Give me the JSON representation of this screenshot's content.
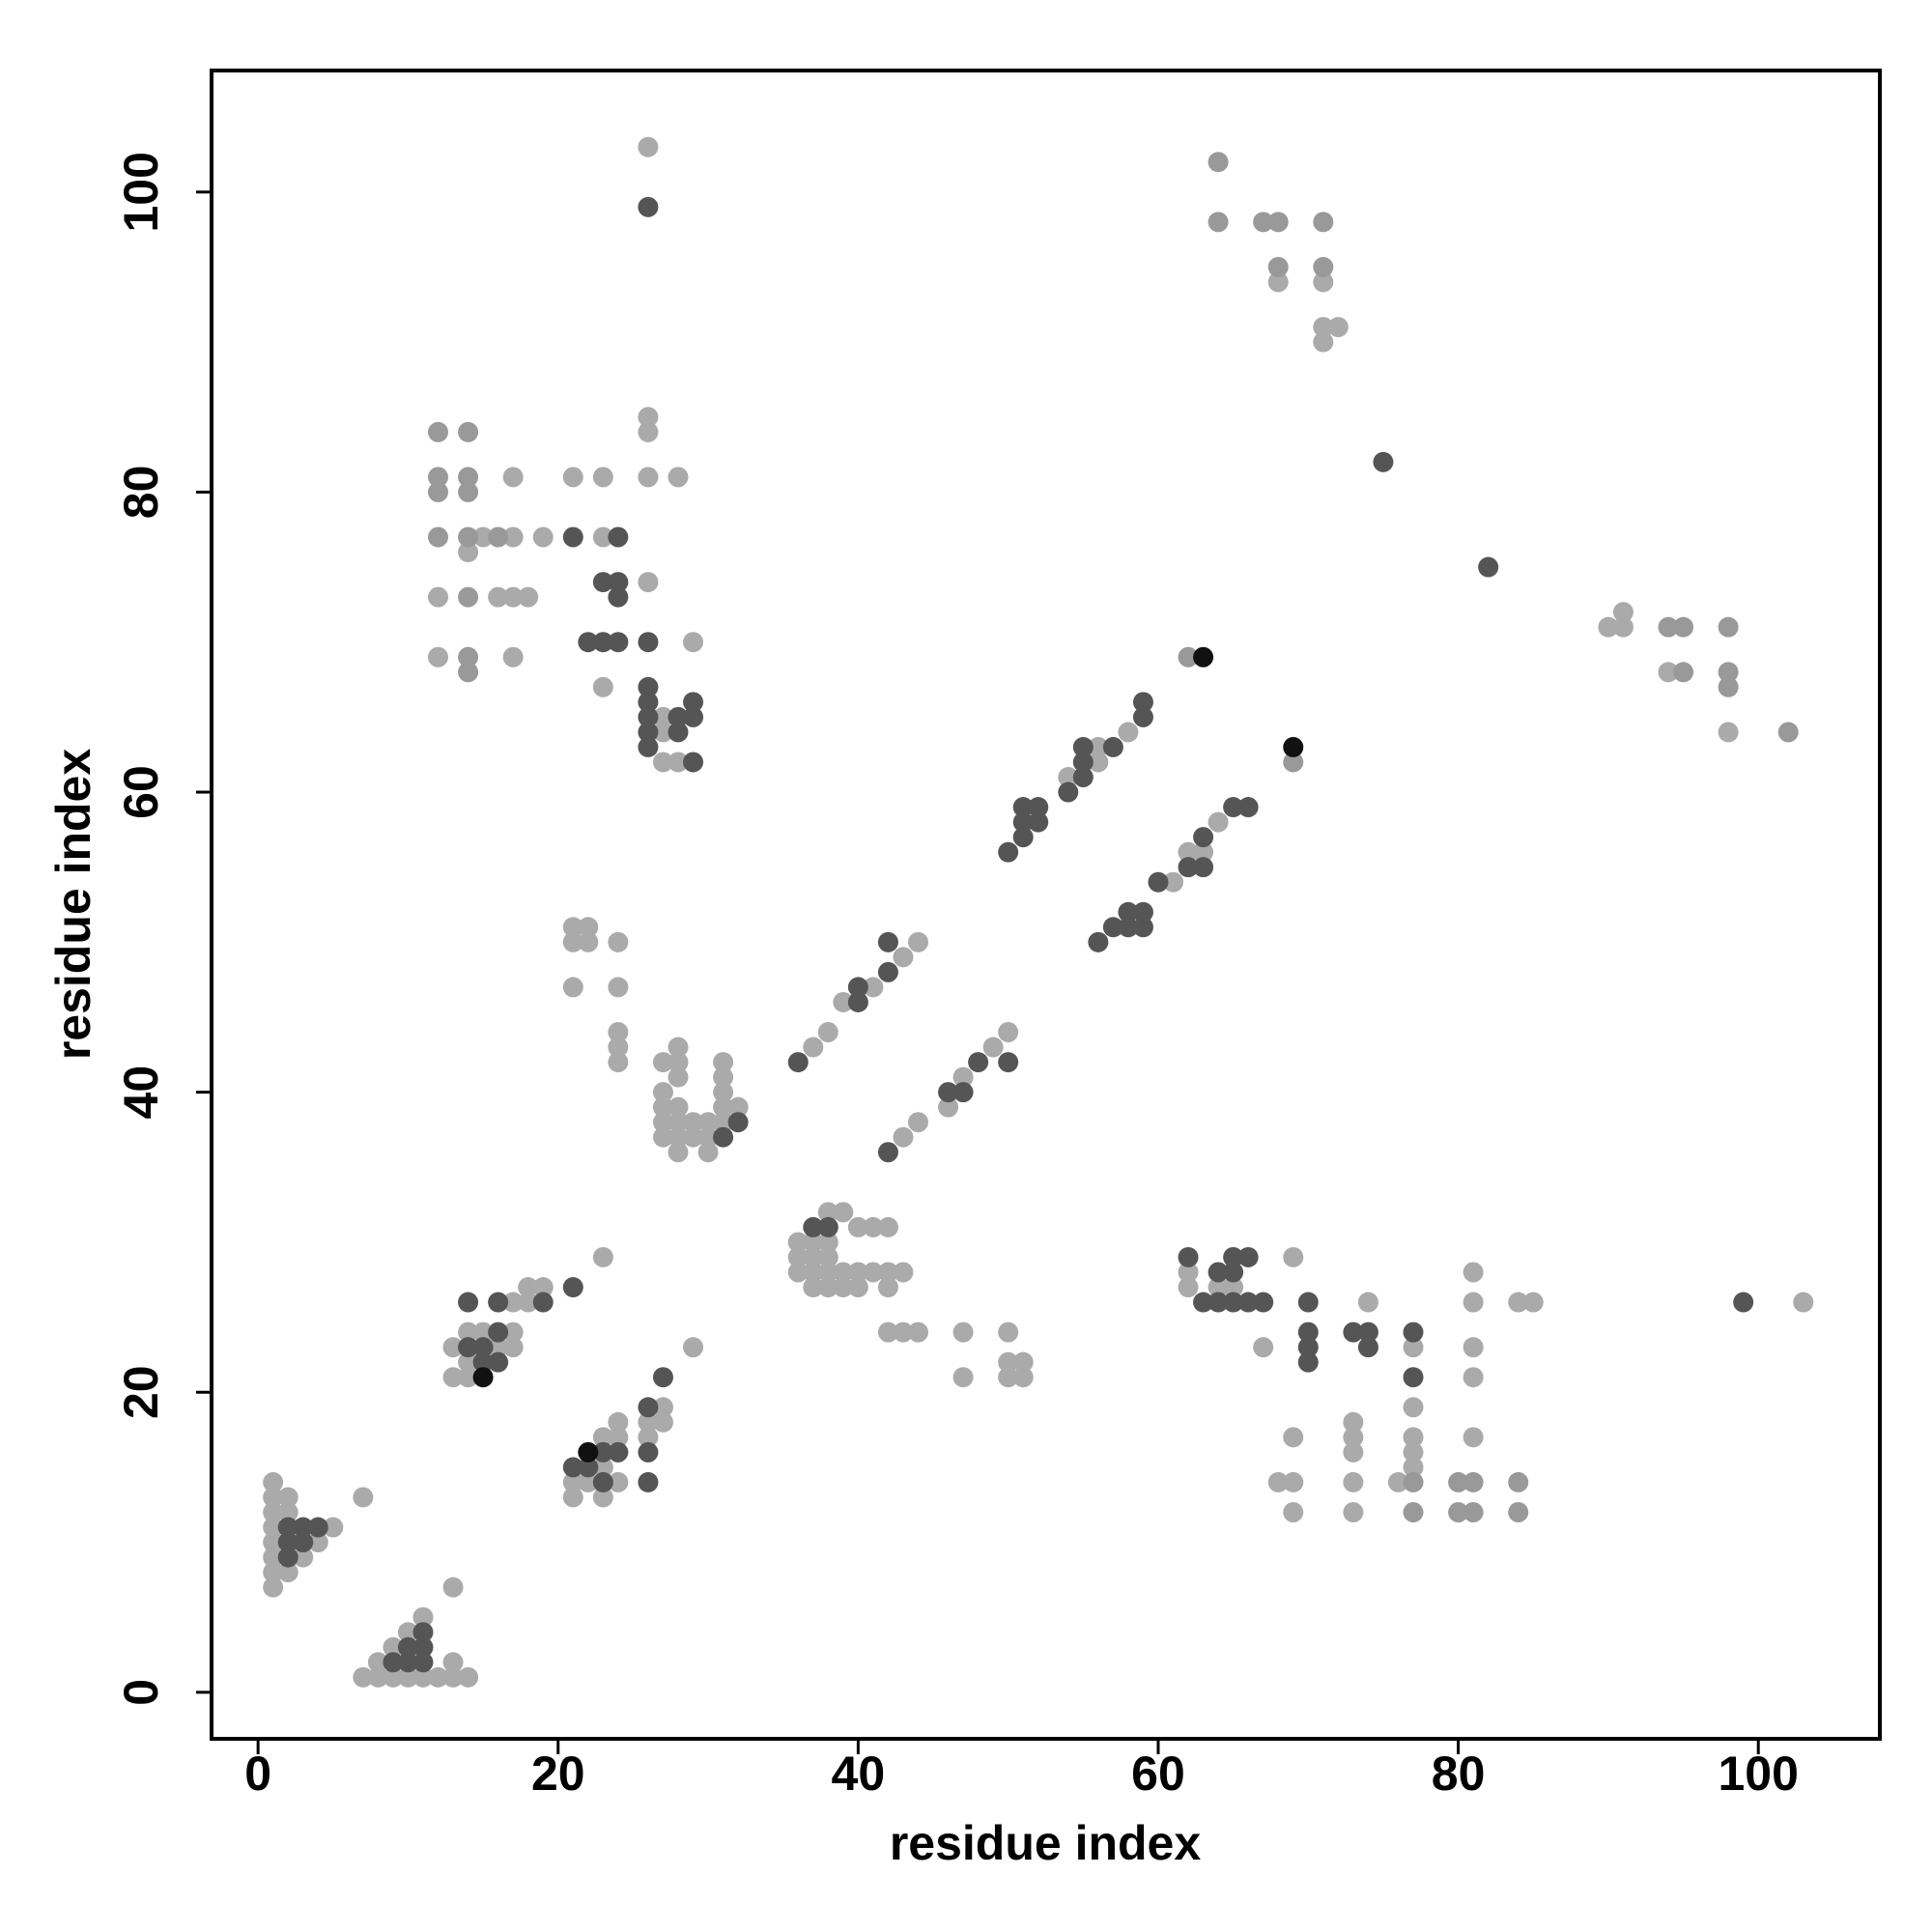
{
  "chart_data": {
    "type": "scatter",
    "x_label": "residue index",
    "y_label": "residue index",
    "xlim": [
      -3.1,
      108.1
    ],
    "ylim": [
      -3.1,
      108.1
    ],
    "xticks": [
      0,
      20,
      40,
      60,
      80,
      100
    ],
    "yticks": [
      0,
      20,
      40,
      60,
      80,
      100
    ],
    "grid": false,
    "series": [
      {
        "color": "#aaaaaa",
        "x": [
          1,
          1,
          1,
          1,
          1,
          1,
          1,
          1,
          2,
          2,
          2,
          3,
          4,
          5,
          7,
          7,
          8,
          8,
          9,
          9,
          10,
          10,
          11,
          12,
          13,
          14,
          13,
          13,
          11,
          13,
          13,
          14,
          14,
          14,
          15,
          16,
          17,
          17,
          17,
          18,
          18,
          19,
          23,
          21,
          21,
          22,
          23,
          23,
          23,
          24,
          24,
          24,
          26,
          26,
          27,
          27,
          29,
          36,
          36,
          36,
          37,
          37,
          37,
          37,
          38,
          38,
          38,
          38,
          38,
          39,
          39,
          39,
          40,
          40,
          40,
          41,
          41,
          42,
          42,
          42,
          43,
          42,
          43,
          44,
          47,
          47,
          50,
          50,
          50,
          51,
          51,
          21,
          21,
          21,
          22,
          22,
          24,
          24,
          24,
          24,
          24,
          27,
          27,
          27,
          27,
          27,
          28,
          28,
          28,
          28,
          28,
          28,
          28,
          29,
          29,
          30,
          30,
          30,
          31,
          31,
          31,
          31,
          31,
          32,
          37,
          38,
          39,
          41,
          43,
          44,
          43,
          44,
          46,
          47,
          49,
          50,
          54,
          56,
          56,
          58,
          61,
          62,
          63,
          64,
          12,
          12,
          14,
          15,
          17,
          17,
          17,
          16,
          18,
          17,
          19,
          21,
          23,
          23,
          23,
          26,
          26,
          26,
          26,
          28,
          29,
          27,
          27,
          27,
          28,
          26,
          68,
          71,
          71,
          72,
          71,
          90,
          91,
          91,
          94,
          98,
          62,
          62,
          64,
          65,
          67,
          69,
          69,
          69,
          69,
          68,
          74,
          73,
          73,
          73,
          73,
          73,
          76,
          77,
          77,
          77,
          77,
          77,
          81,
          81,
          81,
          81,
          81,
          84,
          85,
          103
        ],
        "y": [
          7,
          8,
          9,
          10,
          11,
          12,
          13,
          14,
          8,
          12,
          13,
          9,
          10,
          11,
          13,
          1,
          1,
          2,
          1,
          3,
          1,
          4,
          1,
          1,
          1,
          1,
          2,
          7,
          5,
          21,
          23,
          21,
          22,
          24,
          24,
          23,
          23,
          24,
          26,
          26,
          27,
          27,
          29,
          13,
          14,
          14,
          13,
          15,
          17,
          14,
          17,
          18,
          17,
          18,
          18,
          19,
          23,
          28,
          29,
          30,
          27,
          28,
          29,
          30,
          27,
          28,
          29,
          30,
          32,
          27,
          28,
          32,
          27,
          28,
          31,
          28,
          31,
          27,
          28,
          31,
          28,
          24,
          24,
          24,
          24,
          21,
          24,
          22,
          21,
          22,
          21,
          47,
          50,
          51,
          50,
          51,
          50,
          47,
          44,
          43,
          42,
          42,
          40,
          39,
          38,
          37,
          43,
          42,
          41,
          39,
          38,
          37,
          36,
          38,
          37,
          38,
          37,
          36,
          42,
          41,
          40,
          39,
          38,
          39,
          43,
          44,
          46,
          47,
          49,
          50,
          37,
          38,
          39,
          41,
          43,
          44,
          61,
          62,
          63,
          64,
          54,
          56,
          56,
          58,
          69,
          73,
          76,
          77,
          77,
          81,
          73,
          73,
          73,
          69,
          77,
          81,
          81,
          77,
          67,
          81,
          84,
          85,
          74,
          81,
          70,
          65,
          64,
          62,
          62,
          103,
          94,
          94,
          91,
          91,
          90,
          71,
          72,
          71,
          68,
          64,
          28,
          27,
          27,
          27,
          23,
          29,
          17,
          14,
          12,
          14,
          26,
          18,
          17,
          16,
          14,
          12,
          14,
          23,
          19,
          17,
          16,
          15,
          28,
          26,
          23,
          21,
          17,
          26,
          26,
          26
        ]
      },
      {
        "color": "#999999",
        "x": [
          12,
          12,
          12,
          12,
          14,
          14,
          14,
          14,
          14,
          14,
          14,
          16,
          62,
          69,
          64,
          64,
          67,
          68,
          68,
          71,
          71,
          94,
          95,
          95,
          98,
          98,
          98,
          102,
          77,
          77,
          80,
          80,
          81,
          81,
          84,
          84
        ],
        "y": [
          77,
          80,
          81,
          84,
          68,
          69,
          73,
          77,
          80,
          81,
          84,
          77,
          69,
          62,
          102,
          98,
          98,
          98,
          95,
          98,
          95,
          71,
          71,
          68,
          71,
          68,
          67,
          64,
          14,
          12,
          14,
          12,
          14,
          12,
          14,
          12
        ]
      },
      {
        "color": "#555555",
        "x": [
          2,
          2,
          2,
          3,
          3,
          4,
          9,
          10,
          10,
          11,
          11,
          11,
          14,
          14,
          15,
          15,
          16,
          16,
          16,
          19,
          21,
          21,
          22,
          23,
          23,
          24,
          26,
          26,
          26,
          27,
          37,
          38,
          31,
          32,
          36,
          40,
          40,
          42,
          42,
          42,
          46,
          47,
          48,
          50,
          50,
          51,
          51,
          51,
          52,
          52,
          54,
          55,
          55,
          55,
          57,
          59,
          59,
          56,
          57,
          58,
          58,
          59,
          59,
          60,
          62,
          63,
          63,
          65,
          66,
          21,
          22,
          23,
          23,
          24,
          24,
          24,
          24,
          26,
          26,
          26,
          26,
          26,
          26,
          28,
          28,
          29,
          29,
          29,
          26,
          75,
          82,
          62,
          63,
          64,
          64,
          65,
          65,
          65,
          66,
          66,
          67,
          70,
          70,
          70,
          70,
          73,
          74,
          74,
          77,
          77,
          99
        ],
        "y": [
          9,
          10,
          11,
          10,
          11,
          11,
          2,
          2,
          3,
          2,
          3,
          4,
          23,
          26,
          22,
          23,
          22,
          24,
          26,
          26,
          27,
          15,
          15,
          14,
          16,
          16,
          14,
          16,
          19,
          21,
          31,
          31,
          37,
          38,
          42,
          46,
          47,
          48,
          50,
          36,
          40,
          40,
          42,
          42,
          56,
          57,
          58,
          59,
          58,
          59,
          60,
          61,
          62,
          63,
          63,
          65,
          66,
          50,
          51,
          51,
          52,
          51,
          52,
          54,
          55,
          55,
          57,
          59,
          59,
          77,
          70,
          70,
          74,
          74,
          73,
          77,
          70,
          70,
          67,
          66,
          65,
          64,
          63,
          65,
          64,
          66,
          65,
          62,
          99,
          82,
          75,
          29,
          26,
          28,
          26,
          29,
          28,
          26,
          29,
          26,
          26,
          26,
          24,
          23,
          22,
          24,
          24,
          23,
          24,
          21,
          26
        ]
      },
      {
        "color": "#111111",
        "x": [
          63,
          69,
          22,
          15
        ],
        "y": [
          69,
          63,
          16,
          21
        ]
      }
    ]
  }
}
